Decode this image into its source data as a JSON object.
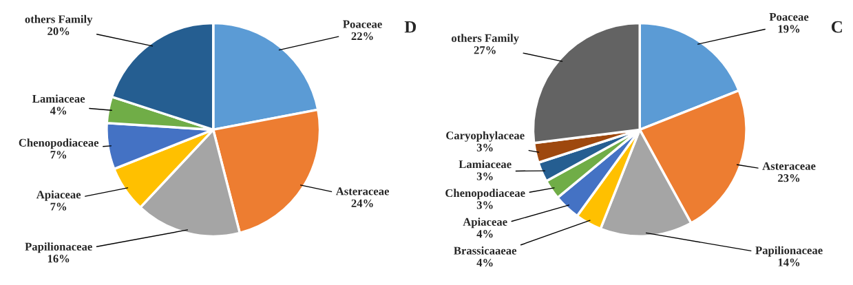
{
  "chart_data": [
    {
      "type": "pie",
      "title": "D",
      "categories": [
        "Poaceae",
        "Asteraceae",
        "Papilionaceae",
        "Apiaceae",
        "Chenopodiaceae",
        "Lamiaceae",
        "others Family"
      ],
      "values": [
        22,
        24,
        16,
        7,
        7,
        4,
        20
      ],
      "colors": [
        "#5b9bd5",
        "#ed7d31",
        "#a5a5a5",
        "#ffc000",
        "#4472c4",
        "#70ad47",
        "#255e91"
      ],
      "value_labels": [
        "22%",
        "24%",
        "16%",
        "7%",
        "7%",
        "4%",
        "20%"
      ],
      "legend": false
    },
    {
      "type": "pie",
      "title": "C",
      "categories": [
        "Poaceae",
        "Asteraceae",
        "Papilionaceae",
        "Brassicaaeae",
        "Apiaceae",
        "Chenopodiaceae",
        "Lamiaceae",
        "Caryophylaceae",
        "others Family"
      ],
      "values": [
        19,
        23,
        14,
        4,
        4,
        3,
        3,
        3,
        27
      ],
      "colors": [
        "#5b9bd5",
        "#ed7d31",
        "#a5a5a5",
        "#ffc000",
        "#4472c4",
        "#70ad47",
        "#255e91",
        "#9e480e",
        "#636363"
      ],
      "value_labels": [
        "19%",
        "23%",
        "14%",
        "4%",
        "4%",
        "3%",
        "3%",
        "3%",
        "27%"
      ],
      "legend": false
    }
  ]
}
